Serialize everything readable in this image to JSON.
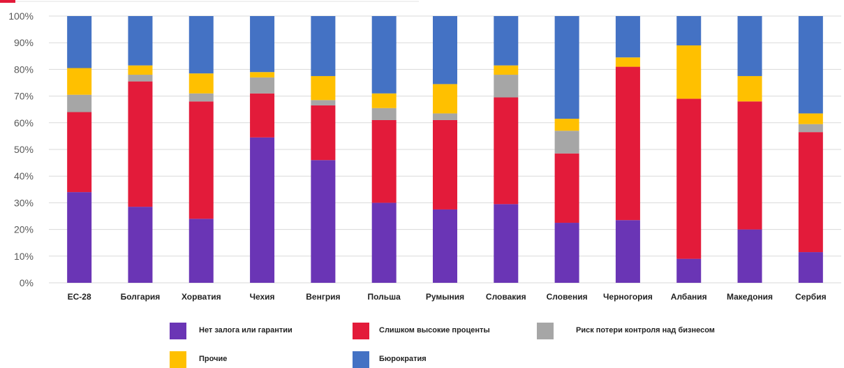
{
  "chart_data": {
    "type": "bar",
    "stacked": true,
    "normalized": true,
    "categories": [
      "ЕС-28",
      "Болгария",
      "Хорватия",
      "Чехия",
      "Венгрия",
      "Польша",
      "Румыния",
      "Словакия",
      "Словения",
      "Черногория",
      "Албания",
      "Македония",
      "Сербия"
    ],
    "series": [
      {
        "name": "Нет залога  или гарантии",
        "color": "#6a35b5",
        "values": [
          34,
          28.5,
          24,
          54.5,
          46,
          30,
          27.5,
          29.5,
          22.5,
          23.5,
          9,
          20,
          11.5
        ]
      },
      {
        "name": "Слишком высокие проценты",
        "color": "#e31b3a",
        "values": [
          30,
          47,
          44,
          16.5,
          20.5,
          31,
          33.5,
          40,
          26,
          57.5,
          60,
          48,
          45
        ]
      },
      {
        "name": "Риск потери контроля над бизнесом",
        "color": "#a6a6a6",
        "values": [
          6.5,
          2.5,
          3,
          6,
          2,
          4.5,
          2.5,
          8.5,
          8.5,
          0,
          0,
          0,
          3
        ]
      },
      {
        "name": "Прочие",
        "color": "#ffc000",
        "values": [
          10,
          3.5,
          7.5,
          2,
          9,
          5.5,
          11,
          3.5,
          4.5,
          3.5,
          20,
          9.5,
          4
        ]
      },
      {
        "name": "Бюрократия",
        "color": "#4472c4",
        "values": [
          19.5,
          18.5,
          21.5,
          21,
          22.5,
          29,
          25.5,
          18.5,
          38.5,
          15.5,
          11,
          22.5,
          36.5
        ]
      }
    ],
    "yticks": [
      "0%",
      "10%",
      "20%",
      "30%",
      "40%",
      "50%",
      "60%",
      "70%",
      "80%",
      "90%",
      "100%"
    ],
    "ylim": [
      0,
      100
    ],
    "grid": true,
    "legend_position": "bottom"
  }
}
